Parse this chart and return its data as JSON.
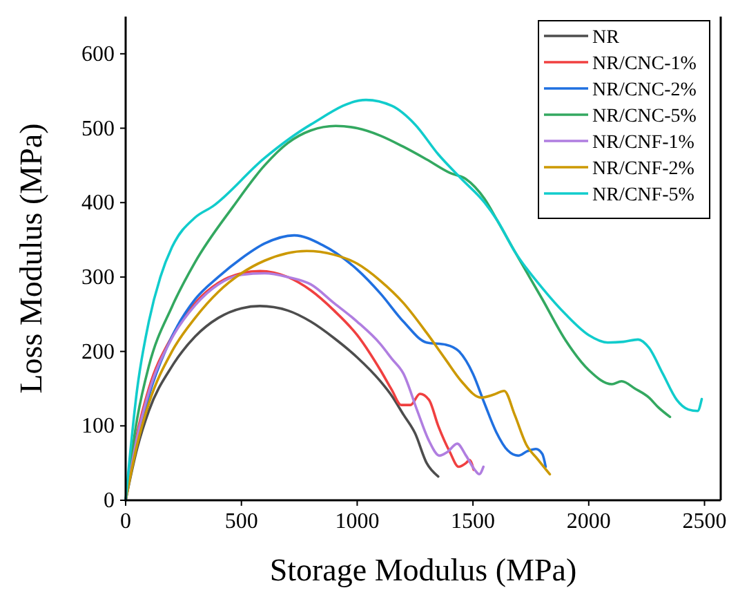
{
  "chart_data": {
    "type": "line",
    "xlabel": "Storage Modulus (MPa)",
    "ylabel": "Loss Modulus (MPa)",
    "xlim": [
      0,
      2570
    ],
    "ylim": [
      0,
      650
    ],
    "xticks": [
      0,
      500,
      1000,
      1500,
      2000,
      2500
    ],
    "yticks": [
      0,
      100,
      200,
      300,
      400,
      500,
      600
    ],
    "grid": false,
    "legend": "top right",
    "line_style": "solid",
    "series": [
      {
        "name": "NR",
        "color": "#4d4d4d",
        "x": [
          0,
          50,
          100,
          200,
          300,
          400,
          500,
          580,
          700,
          800,
          900,
          1000,
          1100,
          1150,
          1200,
          1250,
          1300,
          1350
        ],
        "values": [
          0,
          70,
          120,
          180,
          220,
          245,
          258,
          261,
          255,
          240,
          218,
          192,
          160,
          140,
          115,
          90,
          50,
          32
        ]
      },
      {
        "name": "NR/CNC-1%",
        "color": "#f04040",
        "x": [
          0,
          50,
          100,
          200,
          300,
          400,
          500,
          580,
          700,
          800,
          900,
          1000,
          1100,
          1150,
          1190,
          1230,
          1271,
          1310,
          1350,
          1400,
          1438,
          1470,
          1485,
          1503
        ],
        "values": [
          0,
          90,
          150,
          220,
          265,
          292,
          305,
          308,
          300,
          282,
          255,
          222,
          175,
          148,
          128,
          128,
          143,
          135,
          100,
          65,
          45,
          50,
          54,
          41
        ]
      },
      {
        "name": "NR/CNC-2%",
        "color": "#2070e0",
        "x": [
          0,
          50,
          100,
          200,
          300,
          400,
          500,
          600,
          728,
          850,
          1000,
          1100,
          1200,
          1300,
          1384,
          1440,
          1500,
          1550,
          1600,
          1650,
          1695,
          1735,
          1772,
          1800,
          1814
        ],
        "values": [
          0,
          80,
          140,
          220,
          270,
          300,
          325,
          345,
          356,
          343,
          310,
          278,
          240,
          212,
          209,
          200,
          170,
          130,
          92,
          67,
          60,
          66,
          69,
          62,
          45
        ]
      },
      {
        "name": "NR/CNC-5%",
        "color": "#33a860",
        "x": [
          0,
          50,
          100,
          200,
          300,
          465,
          600,
          700,
          800,
          907,
          1000,
          1100,
          1200,
          1300,
          1400,
          1468,
          1550,
          1605,
          1683,
          1800,
          1900,
          2000,
          2100,
          2142,
          2200,
          2260,
          2300,
          2351
        ],
        "values": [
          0,
          110,
          180,
          260,
          320,
          395,
          450,
          480,
          497,
          503,
          500,
          490,
          475,
          458,
          440,
          432,
          405,
          376,
          333,
          270,
          215,
          175,
          156,
          160,
          150,
          138,
          125,
          112
        ]
      },
      {
        "name": "NR/CNF-1%",
        "color": "#b07ee0",
        "x": [
          0,
          50,
          100,
          200,
          300,
          400,
          500,
          600,
          700,
          800,
          900,
          1000,
          1100,
          1150,
          1200,
          1260,
          1310,
          1355,
          1390,
          1432,
          1470,
          1510,
          1527,
          1545
        ],
        "values": [
          0,
          85,
          145,
          218,
          262,
          290,
          303,
          305,
          300,
          290,
          265,
          240,
          210,
          190,
          170,
          120,
          80,
          60,
          65,
          76,
          60,
          40,
          35,
          45
        ]
      },
      {
        "name": "NR/CNF-2%",
        "color": "#cc9900",
        "x": [
          0,
          50,
          100,
          200,
          300,
          400,
          500,
          600,
          782,
          900,
          1000,
          1100,
          1200,
          1300,
          1380,
          1450,
          1535,
          1590,
          1635,
          1680,
          1730,
          1780,
          1832
        ],
        "values": [
          0,
          75,
          130,
          200,
          245,
          280,
          305,
          322,
          335,
          330,
          318,
          295,
          265,
          225,
          190,
          160,
          138,
          142,
          147,
          115,
          75,
          55,
          35
        ]
      },
      {
        "name": "NR/CNF-5%",
        "color": "#11cccc",
        "x": [
          0,
          50,
          100,
          150,
          200,
          300,
          376,
          600,
          800,
          1038,
          1150,
          1250,
          1350,
          1450,
          1550,
          1605,
          1683,
          1800,
          1900,
          2000,
          2082,
          2150,
          2213,
          2260,
          2320,
          2380,
          2430,
          2470,
          2488
        ],
        "values": [
          0,
          150,
          240,
          300,
          340,
          380,
          395,
          460,
          505,
          538,
          530,
          505,
          465,
          432,
          400,
          376,
          333,
          285,
          250,
          222,
          212,
          213,
          216,
          205,
          170,
          135,
          122,
          120,
          136
        ]
      }
    ]
  }
}
